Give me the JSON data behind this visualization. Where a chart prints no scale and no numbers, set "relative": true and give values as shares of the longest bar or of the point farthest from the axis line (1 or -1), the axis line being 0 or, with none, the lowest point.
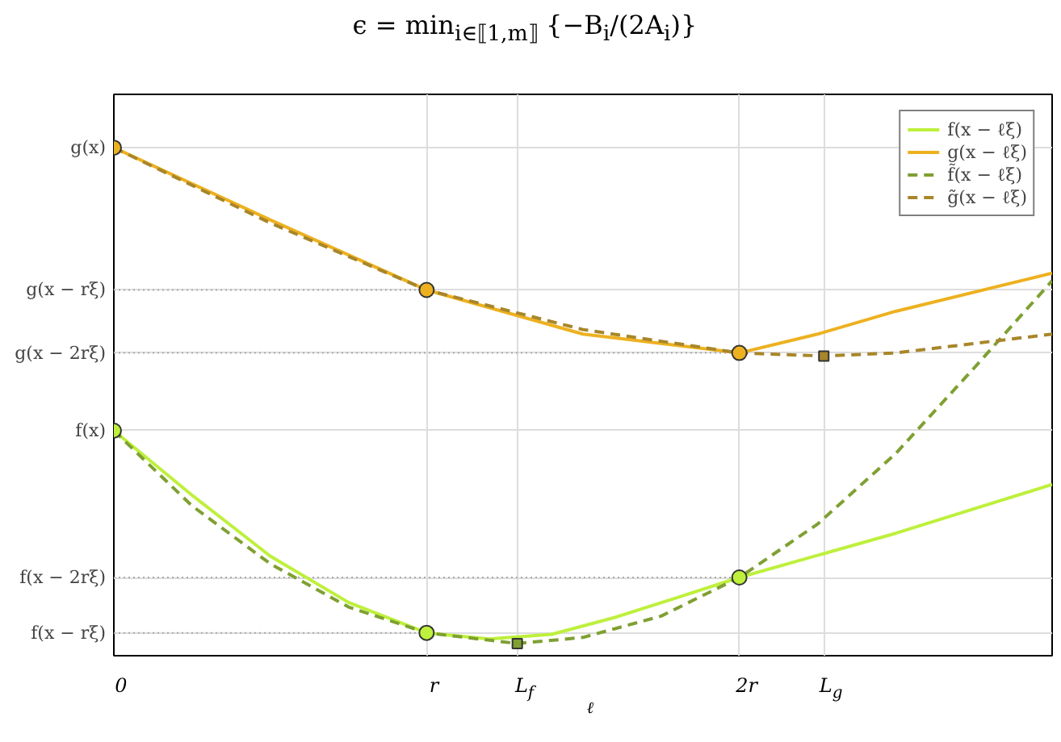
{
  "chart_data": {
    "type": "line",
    "title": "ϵ = min$_{i∈⟦1,m⟧}$ {−B$_{i}$/(2A$_{i}$)}",
    "xlabel": "ℓ",
    "relative": true,
    "xlim": [
      0,
      3
    ],
    "xticks": [
      0,
      {
        "value": 1,
        "label": "r"
      },
      {
        "value": 1.29,
        "label": "L$_{f}$"
      },
      {
        "value": 2,
        "label": "2r"
      },
      {
        "value": 2.27,
        "label": "L$_{g}$"
      }
    ],
    "grid": true,
    "legend": "top right",
    "annotations": [
      {
        "text": "g(x)",
        "x": 0,
        "y": 1
      },
      {
        "text": "g(x − rξ)",
        "x": 1,
        "y": 0.72
      },
      {
        "text": "g(x − 2rξ)",
        "x": 2,
        "y": 0.596
      },
      {
        "text": "f(x)",
        "x": 0,
        "y": 0.443
      },
      {
        "text": "f(x − 2rξ)",
        "x": 2,
        "y": 0.154
      },
      {
        "text": "f(x − rξ)",
        "x": 1,
        "y": 0.045
      }
    ],
    "series": [
      {
        "name": "f(x − ℓξ)",
        "color": "#bef03c",
        "line_style": "solid",
        "x": [
          0,
          0.25,
          0.5,
          0.75,
          1,
          1.2,
          1.4,
          1.6,
          1.8,
          2,
          2.5,
          3
        ],
        "values": [
          0.443,
          0.316,
          0.196,
          0.105,
          0.045,
          0.033,
          0.042,
          0.075,
          0.114,
          0.154,
          0.241,
          0.337
        ]
      },
      {
        "name": "g(x − ℓξ)",
        "color": "#edb120",
        "line_style": "solid",
        "x": [
          0,
          0.5,
          1,
          1.5,
          2,
          2.25,
          2.5,
          3
        ],
        "values": [
          1,
          0.858,
          0.72,
          0.633,
          0.596,
          0.633,
          0.678,
          0.753
        ]
      },
      {
        "name": "f̃(x − ℓξ)",
        "color": "#7fa032",
        "line_style": "dashed",
        "x": [
          0,
          0.25,
          0.5,
          0.75,
          1,
          1.29,
          1.5,
          1.75,
          2,
          2.25,
          2.5,
          2.75,
          3
        ],
        "values": [
          0.443,
          0.295,
          0.181,
          0.096,
          0.045,
          0.024,
          0.036,
          0.078,
          0.154,
          0.259,
          0.398,
          0.566,
          0.738
        ]
      },
      {
        "name": "g̃(x − ℓξ)",
        "color": "#a8862a",
        "line_style": "dashed",
        "x": [
          0,
          0.5,
          1,
          1.5,
          2,
          2.27,
          2.5,
          3
        ],
        "values": [
          1,
          0.852,
          0.72,
          0.642,
          0.596,
          0.59,
          0.596,
          0.633
        ]
      },
      {
        "type": "scatter",
        "marker": "circle",
        "color": "#bef03c",
        "x": [
          0,
          1,
          2
        ],
        "values": [
          0.443,
          0.045,
          0.154
        ]
      },
      {
        "type": "scatter",
        "marker": "circle",
        "color": "#edb120",
        "x": [
          0,
          1,
          2
        ],
        "values": [
          1,
          0.72,
          0.596
        ]
      },
      {
        "type": "scatter",
        "marker": "square",
        "color": "#7fa032",
        "x": [
          1.29
        ],
        "values": [
          0.024
        ]
      },
      {
        "type": "scatter",
        "marker": "square",
        "color": "#a8862a",
        "x": [
          2.27
        ],
        "values": [
          0.59
        ]
      }
    ]
  }
}
